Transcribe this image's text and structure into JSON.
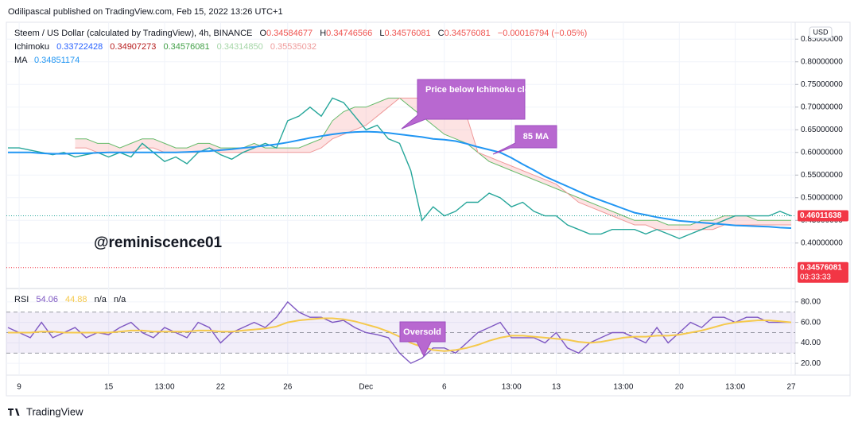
{
  "header": {
    "publisher": "Odilipascal published on TradingView.com, Feb 15, 2022 13:26 UTC+1",
    "currency": "USD"
  },
  "legend": {
    "symbol": "Steem / US Dollar (calculated by TradingView), 4h, BINANCE",
    "ohlc": [
      {
        "key": "O",
        "value": "0.34584677"
      },
      {
        "key": "H",
        "value": "0.34746566"
      },
      {
        "key": "L",
        "value": "0.34576081"
      },
      {
        "key": "C",
        "value": "0.34576081"
      }
    ],
    "change": "−0.00016794 (−0.05%)",
    "ichimoku": {
      "name": "Ichimoku",
      "values": [
        "0.33722428",
        "0.34907273",
        "0.34576081",
        "0.34314850",
        "0.35535032"
      ]
    },
    "ma": {
      "name": "MA",
      "value": "0.34851174"
    },
    "rsi": {
      "name": "RSI",
      "values": [
        "54.06",
        "44.88",
        "n/a",
        "n/a"
      ]
    }
  },
  "annotations": {
    "watermark": "@reminiscence01",
    "cloud_note": "Price below Ichimoku cloud",
    "ma_note": "85 MA",
    "rsi_note": "Oversold"
  },
  "footer": {
    "brand": "TradingView"
  },
  "chart_data": [
    {
      "type": "line",
      "ylim": [
        0.34,
        0.875
      ],
      "yticks": [
        {
          "value": 0.4,
          "label": "0.40000000"
        },
        {
          "value": 0.45,
          "label": "0.45000000"
        },
        {
          "value": 0.5,
          "label": "0.50000000"
        },
        {
          "value": 0.55,
          "label": "0.55000000"
        },
        {
          "value": 0.6,
          "label": "0.60000000"
        },
        {
          "value": 0.65,
          "label": "0.65000000"
        },
        {
          "value": 0.7,
          "label": "0.70000000"
        },
        {
          "value": 0.75,
          "label": "0.75000000"
        },
        {
          "value": 0.8,
          "label": "0.80000000"
        },
        {
          "value": 0.85,
          "label": "0.85000000"
        }
      ],
      "grid": true,
      "cloud": {
        "color": "#f7a1a1",
        "span_a": {
          "color": "#66bb6a",
          "values": [
            null,
            null,
            null,
            null,
            null,
            null,
            0.63,
            0.63,
            0.62,
            0.62,
            0.61,
            0.62,
            0.63,
            0.63,
            0.62,
            0.61,
            0.61,
            0.62,
            0.62,
            0.61,
            0.61,
            0.61,
            0.62,
            0.61,
            0.61,
            0.61,
            0.61,
            0.62,
            0.63,
            0.67,
            0.69,
            0.7,
            0.7,
            0.71,
            0.72,
            0.72,
            0.7,
            0.68,
            0.66,
            0.64,
            0.63,
            0.62,
            0.6,
            0.58,
            0.57,
            0.56,
            0.55,
            0.54,
            0.53,
            0.52,
            0.51,
            0.5,
            0.49,
            0.48,
            0.47,
            0.46,
            0.45,
            0.45,
            0.45,
            0.44,
            0.44,
            0.44,
            0.45,
            0.45,
            0.46,
            0.46,
            0.46,
            0.45,
            0.45,
            0.45,
            0.45
          ]
        },
        "span_b": {
          "color": "#ef9a9a",
          "values": [
            null,
            null,
            null,
            null,
            null,
            null,
            0.61,
            0.61,
            0.6,
            0.6,
            0.6,
            0.6,
            0.61,
            0.61,
            0.6,
            0.6,
            0.6,
            0.6,
            0.61,
            0.6,
            0.6,
            0.6,
            0.6,
            0.6,
            0.6,
            0.6,
            0.6,
            0.6,
            0.61,
            0.63,
            0.64,
            0.65,
            0.66,
            0.68,
            0.7,
            0.72,
            0.72,
            0.72,
            0.72,
            0.72,
            0.7,
            0.68,
            0.6,
            0.59,
            0.58,
            0.57,
            0.56,
            0.55,
            0.54,
            0.53,
            0.51,
            0.49,
            0.48,
            0.47,
            0.46,
            0.45,
            0.44,
            0.44,
            0.43,
            0.43,
            0.43,
            0.43,
            0.43,
            0.43,
            0.44,
            0.44,
            0.44,
            0.44,
            0.44,
            0.44,
            0.44
          ]
        }
      },
      "series": [
        {
          "name": "Price",
          "color": "#26a69a",
          "values": [
            0.61,
            0.61,
            0.605,
            0.6,
            0.595,
            0.6,
            0.59,
            0.595,
            0.6,
            0.59,
            0.6,
            0.59,
            0.62,
            0.6,
            0.58,
            0.59,
            0.575,
            0.6,
            0.61,
            0.595,
            0.585,
            0.6,
            0.61,
            0.62,
            0.61,
            0.67,
            0.68,
            0.7,
            0.68,
            0.72,
            0.71,
            0.68,
            0.65,
            0.66,
            0.63,
            0.62,
            0.56,
            0.45,
            0.48,
            0.46,
            0.47,
            0.49,
            0.49,
            0.51,
            0.5,
            0.48,
            0.49,
            0.47,
            0.46,
            0.46,
            0.44,
            0.43,
            0.42,
            0.42,
            0.43,
            0.43,
            0.43,
            0.42,
            0.43,
            0.42,
            0.41,
            0.42,
            0.43,
            0.44,
            0.45,
            0.46,
            0.46,
            0.46,
            0.46,
            0.47,
            0.46
          ]
        },
        {
          "name": "MA",
          "color": "#2196f3",
          "values": [
            0.6,
            0.6,
            0.6,
            0.598,
            0.597,
            0.597,
            0.598,
            0.598,
            0.599,
            0.6,
            0.6,
            0.6,
            0.6,
            0.6,
            0.6,
            0.6,
            0.601,
            0.602,
            0.603,
            0.605,
            0.607,
            0.61,
            0.612,
            0.615,
            0.618,
            0.622,
            0.627,
            0.632,
            0.636,
            0.64,
            0.643,
            0.645,
            0.646,
            0.645,
            0.643,
            0.64,
            0.637,
            0.634,
            0.63,
            0.628,
            0.625,
            0.619,
            0.612,
            0.606,
            0.6,
            0.588,
            0.574,
            0.561,
            0.547,
            0.536,
            0.525,
            0.514,
            0.503,
            0.494,
            0.485,
            0.476,
            0.467,
            0.462,
            0.457,
            0.453,
            0.449,
            0.447,
            0.445,
            0.443,
            0.441,
            0.439,
            0.438,
            0.437,
            0.436,
            0.434,
            0.433
          ]
        }
      ],
      "last_price": {
        "value": 0.46011638,
        "label": "0.46011638"
      },
      "close_marker": {
        "value": 0.34576081,
        "label": "0.34576081",
        "countdown": "03:33:33"
      }
    },
    {
      "type": "line",
      "categories": [
        null,
        "9",
        null,
        null,
        null,
        null,
        null,
        null,
        null,
        "15",
        null,
        null,
        null,
        null,
        "13:00",
        null,
        null,
        null,
        null,
        "22",
        null,
        null,
        null,
        null,
        null,
        "26",
        null,
        null,
        null,
        null,
        null,
        null,
        "Dec",
        null,
        null,
        null,
        null,
        null,
        null,
        "6",
        null,
        null,
        null,
        null,
        null,
        "13:00",
        null,
        null,
        null,
        "13",
        null,
        null,
        null,
        null,
        null,
        "13:00",
        null,
        null,
        null,
        null,
        "20",
        null,
        null,
        null,
        null,
        "13:00",
        null,
        null,
        null,
        null,
        "27"
      ],
      "ylim": [
        10,
        90
      ],
      "yticks": [
        {
          "value": 20,
          "label": "20.00"
        },
        {
          "value": 40,
          "label": "40.00"
        },
        {
          "value": 60,
          "label": "60.00"
        },
        {
          "value": 80,
          "label": "80.00"
        }
      ],
      "bands": [
        70,
        50,
        30
      ],
      "band_color": "#7e57c2",
      "series": [
        {
          "name": "RSI",
          "color": "#7e57c2",
          "values": [
            55,
            50,
            45,
            60,
            45,
            50,
            55,
            45,
            50,
            48,
            55,
            60,
            50,
            45,
            55,
            50,
            45,
            60,
            55,
            40,
            50,
            55,
            60,
            55,
            65,
            80,
            70,
            65,
            65,
            60,
            62,
            55,
            50,
            48,
            45,
            30,
            20,
            25,
            35,
            35,
            30,
            40,
            50,
            55,
            60,
            45,
            45,
            45,
            40,
            50,
            35,
            30,
            40,
            45,
            50,
            50,
            45,
            40,
            55,
            40,
            50,
            60,
            55,
            65,
            65,
            60,
            65,
            65,
            60,
            60,
            60
          ]
        },
        {
          "name": "RSI MA",
          "color": "#f5c94c",
          "values": [
            50,
            50,
            50,
            51,
            51,
            50,
            50,
            50,
            50,
            50,
            51,
            52,
            52,
            51,
            51,
            51,
            51,
            52,
            52,
            51,
            51,
            52,
            53,
            54,
            56,
            60,
            62,
            63,
            64,
            64,
            63,
            61,
            58,
            55,
            51,
            46,
            40,
            36,
            33,
            32,
            33,
            35,
            38,
            42,
            45,
            47,
            47,
            46,
            45,
            44,
            43,
            41,
            40,
            41,
            43,
            45,
            46,
            46,
            47,
            47,
            48,
            50,
            52,
            55,
            58,
            60,
            61,
            62,
            62,
            61,
            60
          ]
        }
      ]
    }
  ]
}
